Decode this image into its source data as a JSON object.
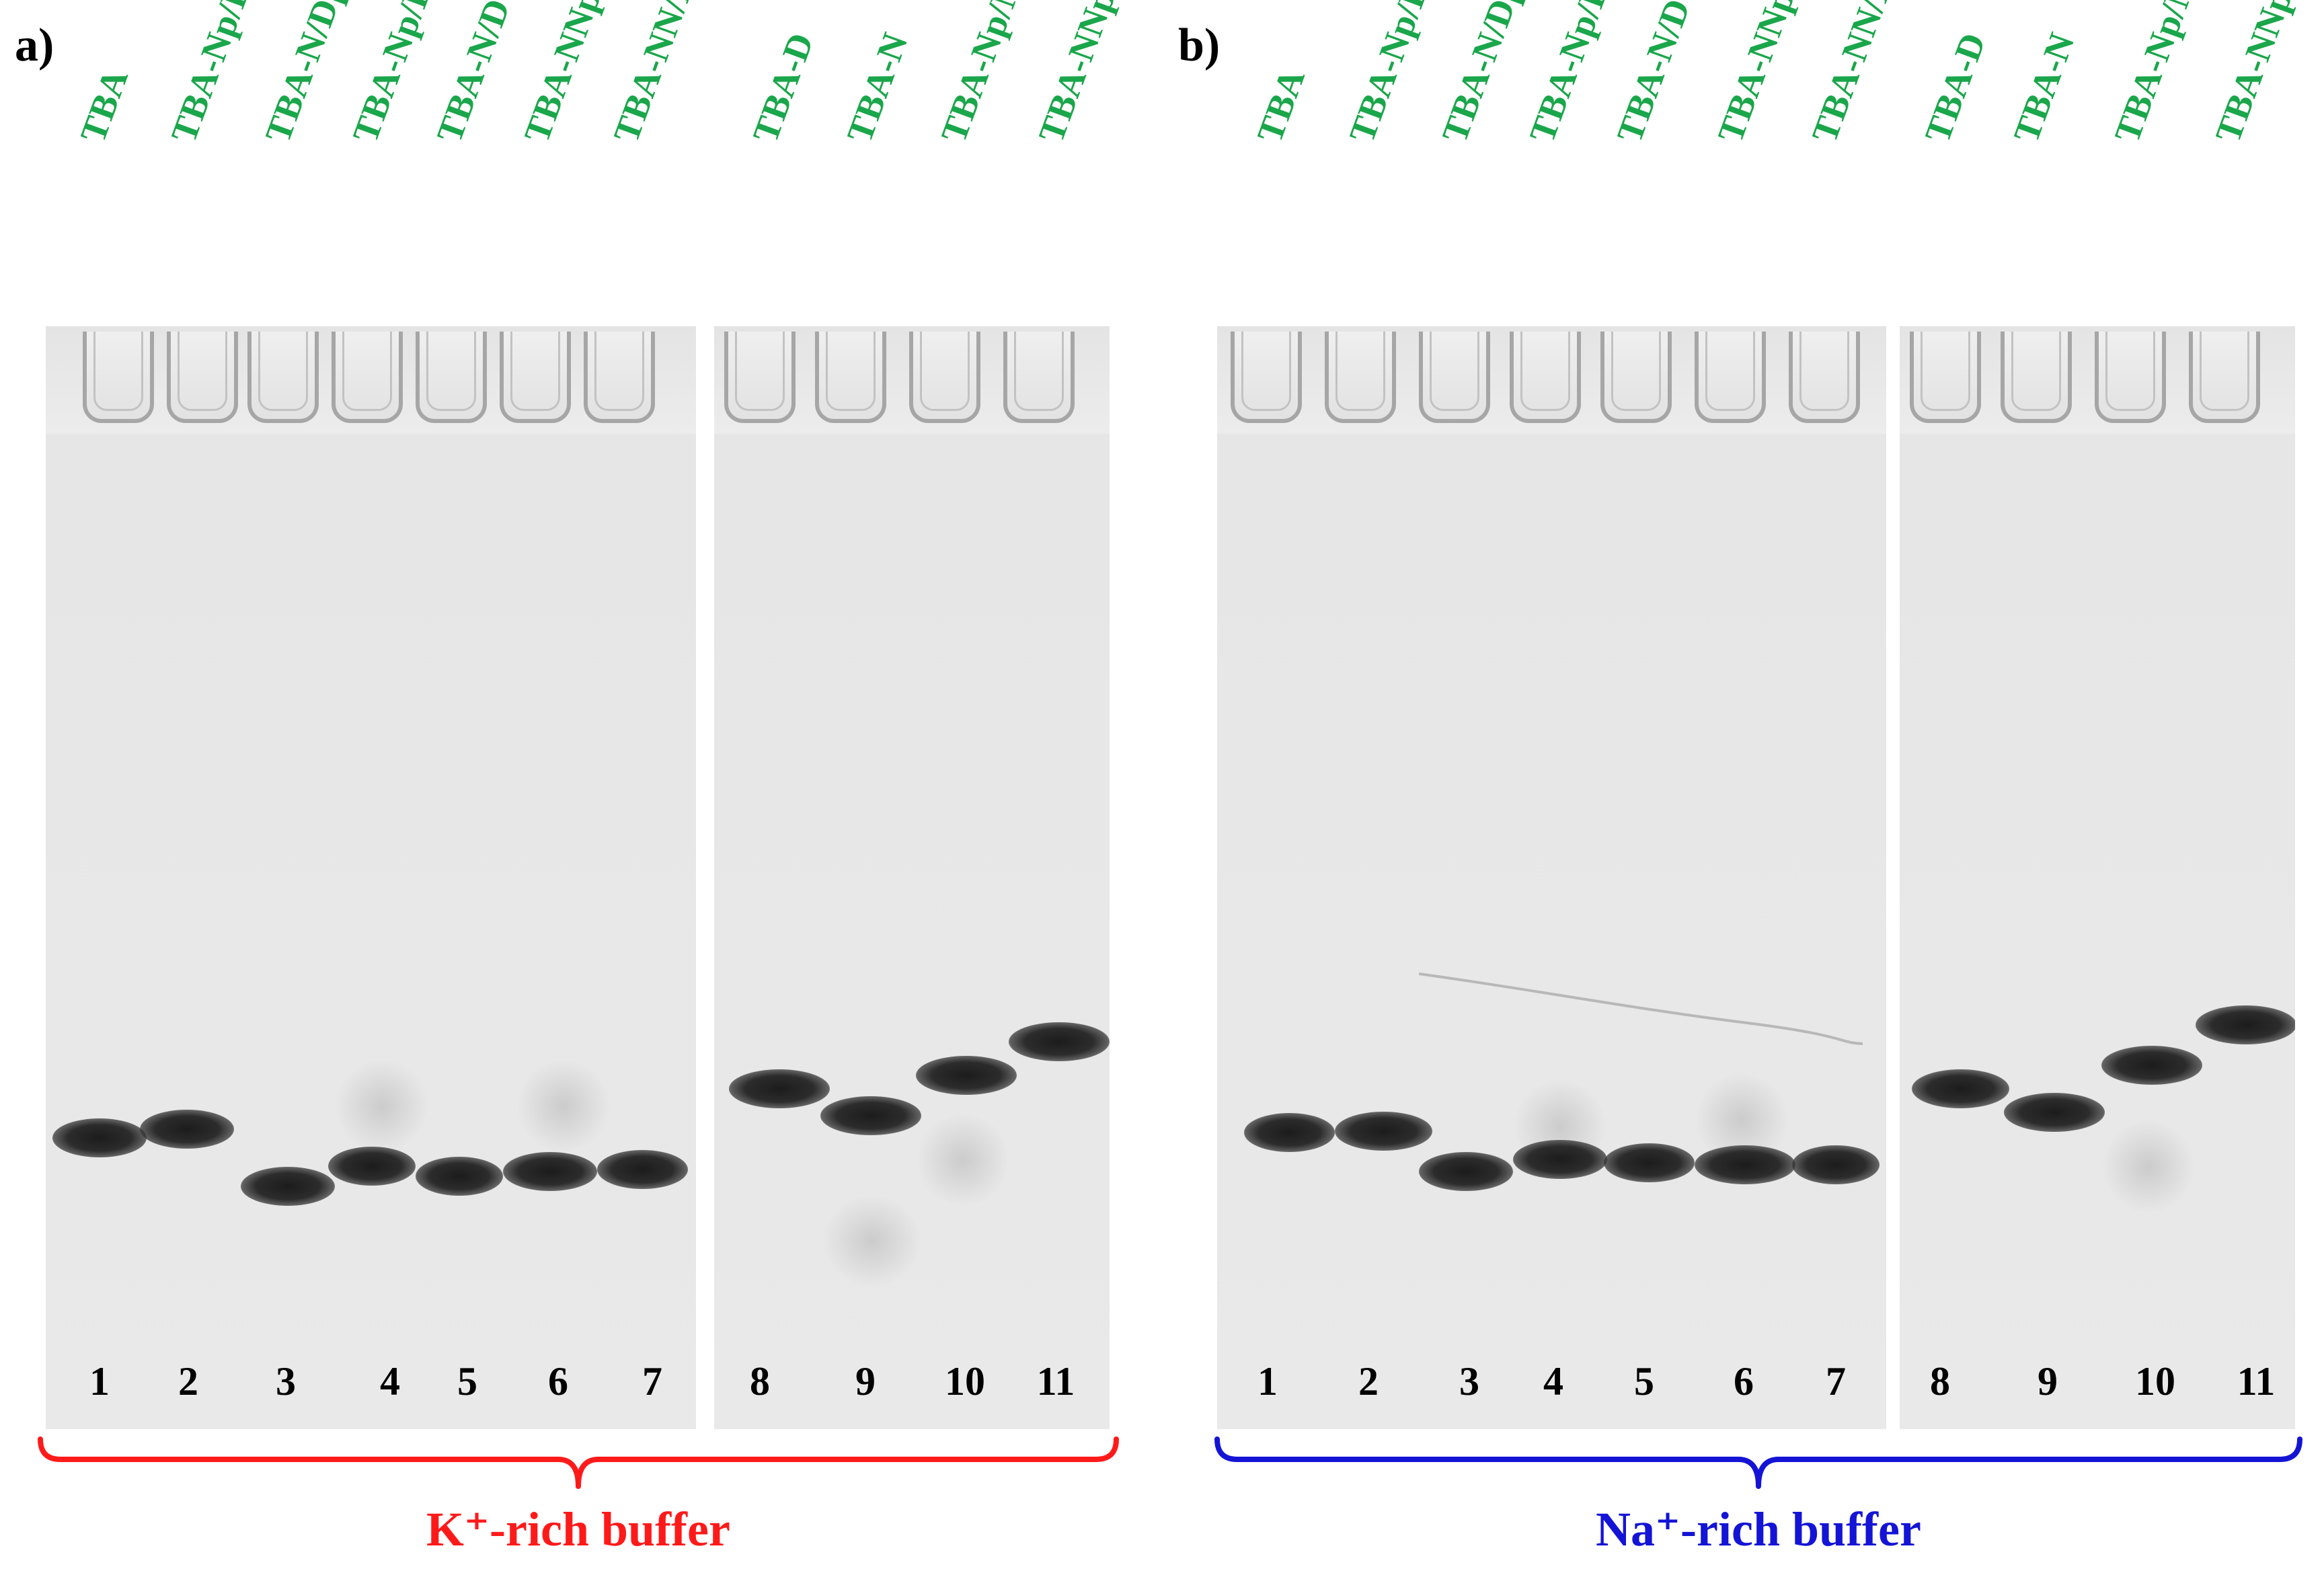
{
  "colors": {
    "lane_label": "#1aa64a",
    "k_buffer": "#ff1a1a",
    "na_buffer": "#1414d6"
  },
  "panels": [
    {
      "letter": "a)",
      "buffer_label": "K⁺-rich buffer",
      "lane_labels": [
        "TBA",
        "TBA-Np/Dp",
        "TBA-N/Dp",
        "TBA-Np/D",
        "TBA-N/D",
        "TBA-NNp/DDp",
        "TBA-NN/DD",
        "TBA-D",
        "TBA-N",
        "TBA-Np/Np",
        "TBA-NNp/NNp"
      ],
      "lane_numbers": [
        "1",
        "2",
        "3",
        "4",
        "5",
        "6",
        "7",
        "8",
        "9",
        "10",
        "11"
      ]
    },
    {
      "letter": "b)",
      "buffer_label": "Na⁺-rich buffer",
      "lane_labels": [
        "TBA",
        "TBA-Np/Dp",
        "TBA-N/Dp",
        "TBA-Np/D",
        "TBA-N/D",
        "TBA-NNp/DDp",
        "TBA-NN/DD",
        "TBA-D",
        "TBA-N",
        "TBA-Np/Np",
        "TBA-NNp/NNp"
      ],
      "lane_numbers": [
        "1",
        "2",
        "3",
        "4",
        "5",
        "6",
        "7",
        "8",
        "9",
        "10",
        "11"
      ]
    }
  ]
}
